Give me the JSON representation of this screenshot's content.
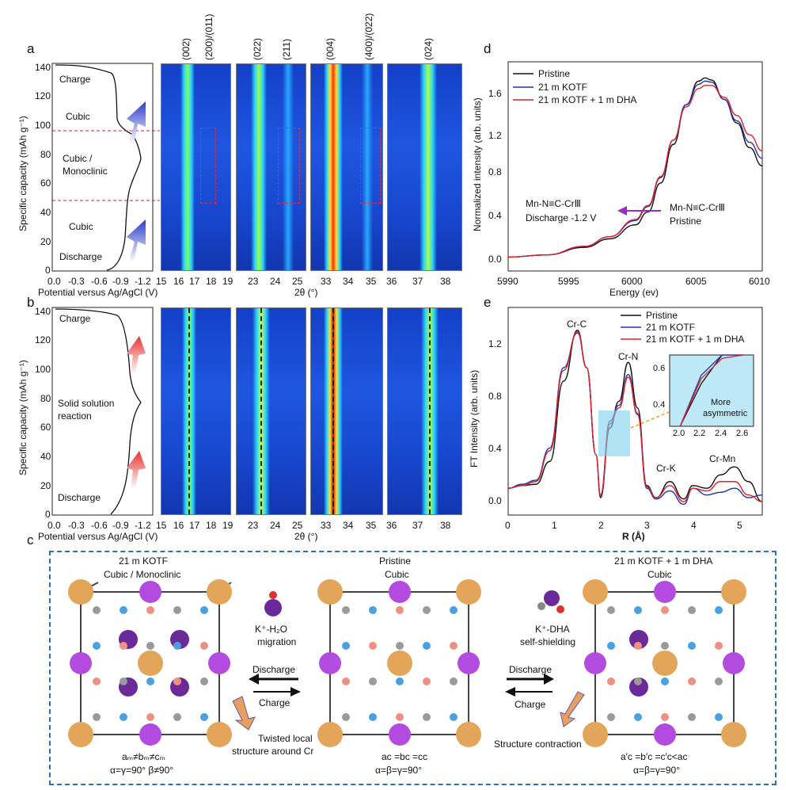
{
  "panels": {
    "a": "a",
    "b": "b",
    "c": "c",
    "d": "d",
    "e": "e"
  },
  "hkl": [
    "(002)",
    "(200)/(011)",
    "(022)",
    "(211)",
    "(004)",
    "(400)/(022)",
    "(024)"
  ],
  "left_axis": {
    "ylabel": "Specific capacity (mAh g⁻¹)",
    "xlabel": "Potential versus Ag/AgCl (V)",
    "yticks": [
      "0",
      "20",
      "40",
      "60",
      "80",
      "100",
      "120",
      "140"
    ],
    "xticks": [
      "0.0",
      "-0.3",
      "-0.6",
      "-0.9",
      "-1.2"
    ]
  },
  "theta_label": "2θ (°)",
  "theta_ticks": {
    "g1": [
      "15",
      "16",
      "17",
      "18",
      "19"
    ],
    "g2": [
      "23",
      "24",
      "25"
    ],
    "g3": [
      "33",
      "34",
      "35"
    ],
    "g4": [
      "36",
      "37",
      "38"
    ]
  },
  "a_annotations": {
    "charge": "Charge",
    "cubic1": "Cubic",
    "mixed1": "Cubic /",
    "mixed2": "Monoclinic",
    "cubic2": "Cubic",
    "discharge": "Discharge"
  },
  "b_annotations": {
    "charge": "Charge",
    "ss1": "Solid solution",
    "ss2": "reaction",
    "discharge": "Discharge"
  },
  "d_plot": {
    "ylabel": "Normalized intensity (arb. units)",
    "xlabel": "Energy (ev)",
    "xticks": [
      "5990",
      "5995",
      "6000",
      "6005",
      "6010"
    ],
    "yticks": [
      "0.0",
      "0.4",
      "0.8",
      "1.2",
      "1.6"
    ],
    "legend": [
      "Pristine",
      "21 m KOTF",
      "21 m KOTF + 1 m DHA"
    ],
    "ann_left1": "Mn-N≡C-CrⅢ",
    "ann_left2": "Discharge -1.2 V",
    "ann_right1": "Mn-N≡C-CrⅢ",
    "ann_right2": "Pristine"
  },
  "e_plot": {
    "ylabel": "FT Intensity (arb. units)",
    "xlabel": "R (Å)",
    "xticks": [
      "0",
      "1",
      "2",
      "3",
      "4",
      "5"
    ],
    "yticks": [
      "0.0",
      "0.4",
      "0.8",
      "1.2"
    ],
    "legend": [
      "Pristine",
      "21 m KOTF",
      "21 m KOTF + 1 m DHA"
    ],
    "peaks": {
      "crc": "Cr-C",
      "crn": "Cr-N",
      "crk": "Cr-K",
      "crmn": "Cr-Mn"
    },
    "inset_xticks": [
      "2.0",
      "2.2",
      "2.4",
      "2.6"
    ],
    "inset_yticks": [
      "0.4",
      "0.6"
    ],
    "inset_note1": "More",
    "inset_note2": "asymmetric"
  },
  "c_panel": {
    "left_title1": "21 m KOTF",
    "left_title2": "Cubic / Monoclinic",
    "mid_title1": "Pristine",
    "mid_title2": "Cubic",
    "right_title1": "21 m KOTF + 1 m DHA",
    "right_title2": "Cubic",
    "k_h2o1": "K⁺-H₂O",
    "k_h2o2": "migration",
    "k_dha1": "K⁺-DHA",
    "k_dha2": "self-shielding",
    "discharge": "Discharge",
    "charge": "Charge",
    "twisted1": "Twisted local",
    "twisted2": "structure around Cr",
    "contraction": "Structure contraction",
    "eq_left1": "aₘ≠bₘ≠cₘ",
    "eq_left2": "α=γ=90°   β≠90°",
    "eq_mid1": "aᴄ =bᴄ =cᴄ",
    "eq_mid2": "α=β=γ=90°",
    "eq_right1": "a′ᴄ =b′ᴄ =c′ᴄ<aᴄ",
    "eq_right2": "α=β=γ=90°"
  },
  "colors": {
    "pristine": "#111111",
    "kotf": "#2233aa",
    "dha": "#e0202a",
    "dash_box": "#2a6fc0"
  },
  "chart_data": [
    {
      "type": "line",
      "title": "",
      "xlabel": "Energy (ev)",
      "ylabel": "Normalized intensity (arb. units)",
      "xlim": [
        5990,
        6010
      ],
      "ylim": [
        -0.1,
        1.85
      ],
      "x": [
        5990,
        5993,
        5996,
        5998,
        6000,
        6001,
        6002,
        6003,
        6004,
        6005,
        6005.5,
        6006,
        6007,
        6008,
        6009,
        6010
      ],
      "series": [
        {
          "name": "Pristine",
          "values": [
            0.03,
            0.05,
            0.12,
            0.2,
            0.33,
            0.45,
            0.72,
            1.08,
            1.45,
            1.67,
            1.7,
            1.68,
            1.5,
            1.28,
            1.05,
            0.88
          ]
        },
        {
          "name": "21 m KOTF",
          "values": [
            0.03,
            0.05,
            0.13,
            0.22,
            0.37,
            0.5,
            0.77,
            1.12,
            1.45,
            1.64,
            1.67,
            1.66,
            1.5,
            1.3,
            1.1,
            0.95
          ]
        },
        {
          "name": "21 m KOTF + 1 m DHA",
          "values": [
            0.03,
            0.05,
            0.13,
            0.22,
            0.38,
            0.51,
            0.78,
            1.12,
            1.43,
            1.6,
            1.63,
            1.63,
            1.52,
            1.35,
            1.17,
            1.02
          ]
        }
      ]
    },
    {
      "type": "line",
      "title": "",
      "xlabel": "R (Å)",
      "ylabel": "FT Intensity (arb. units)",
      "xlim": [
        0,
        5.5
      ],
      "ylim": [
        -0.1,
        1.45
      ],
      "x": [
        0,
        0.3,
        0.6,
        0.9,
        1.2,
        1.5,
        1.7,
        1.9,
        2.0,
        2.2,
        2.4,
        2.6,
        2.8,
        3.0,
        3.2,
        3.5,
        3.8,
        4.0,
        4.3,
        4.6,
        4.9,
        5.2,
        5.5
      ],
      "series": [
        {
          "name": "Pristine",
          "values": [
            0.1,
            0.12,
            0.13,
            0.3,
            0.9,
            1.28,
            1.0,
            0.35,
            0.03,
            0.55,
            0.75,
            1.04,
            0.7,
            0.12,
            0.03,
            0.15,
            0.02,
            0.12,
            0.1,
            0.2,
            0.26,
            0.15,
            0.0
          ]
        },
        {
          "name": "21 m KOTF",
          "values": [
            0.1,
            0.13,
            0.16,
            0.4,
            1.0,
            1.26,
            1.0,
            0.35,
            0.05,
            0.6,
            0.72,
            0.95,
            0.65,
            0.1,
            0.02,
            0.08,
            -0.02,
            0.1,
            0.05,
            0.07,
            0.1,
            0.03,
            0.05
          ]
        },
        {
          "name": "21 m KOTF + 1 m DHA",
          "values": [
            0.1,
            0.12,
            0.15,
            0.38,
            0.98,
            1.27,
            1.0,
            0.35,
            0.04,
            0.58,
            0.7,
            0.93,
            0.66,
            0.11,
            0.03,
            0.12,
            0.0,
            0.1,
            0.08,
            0.15,
            0.15,
            0.05,
            0.0
          ]
        }
      ]
    }
  ]
}
